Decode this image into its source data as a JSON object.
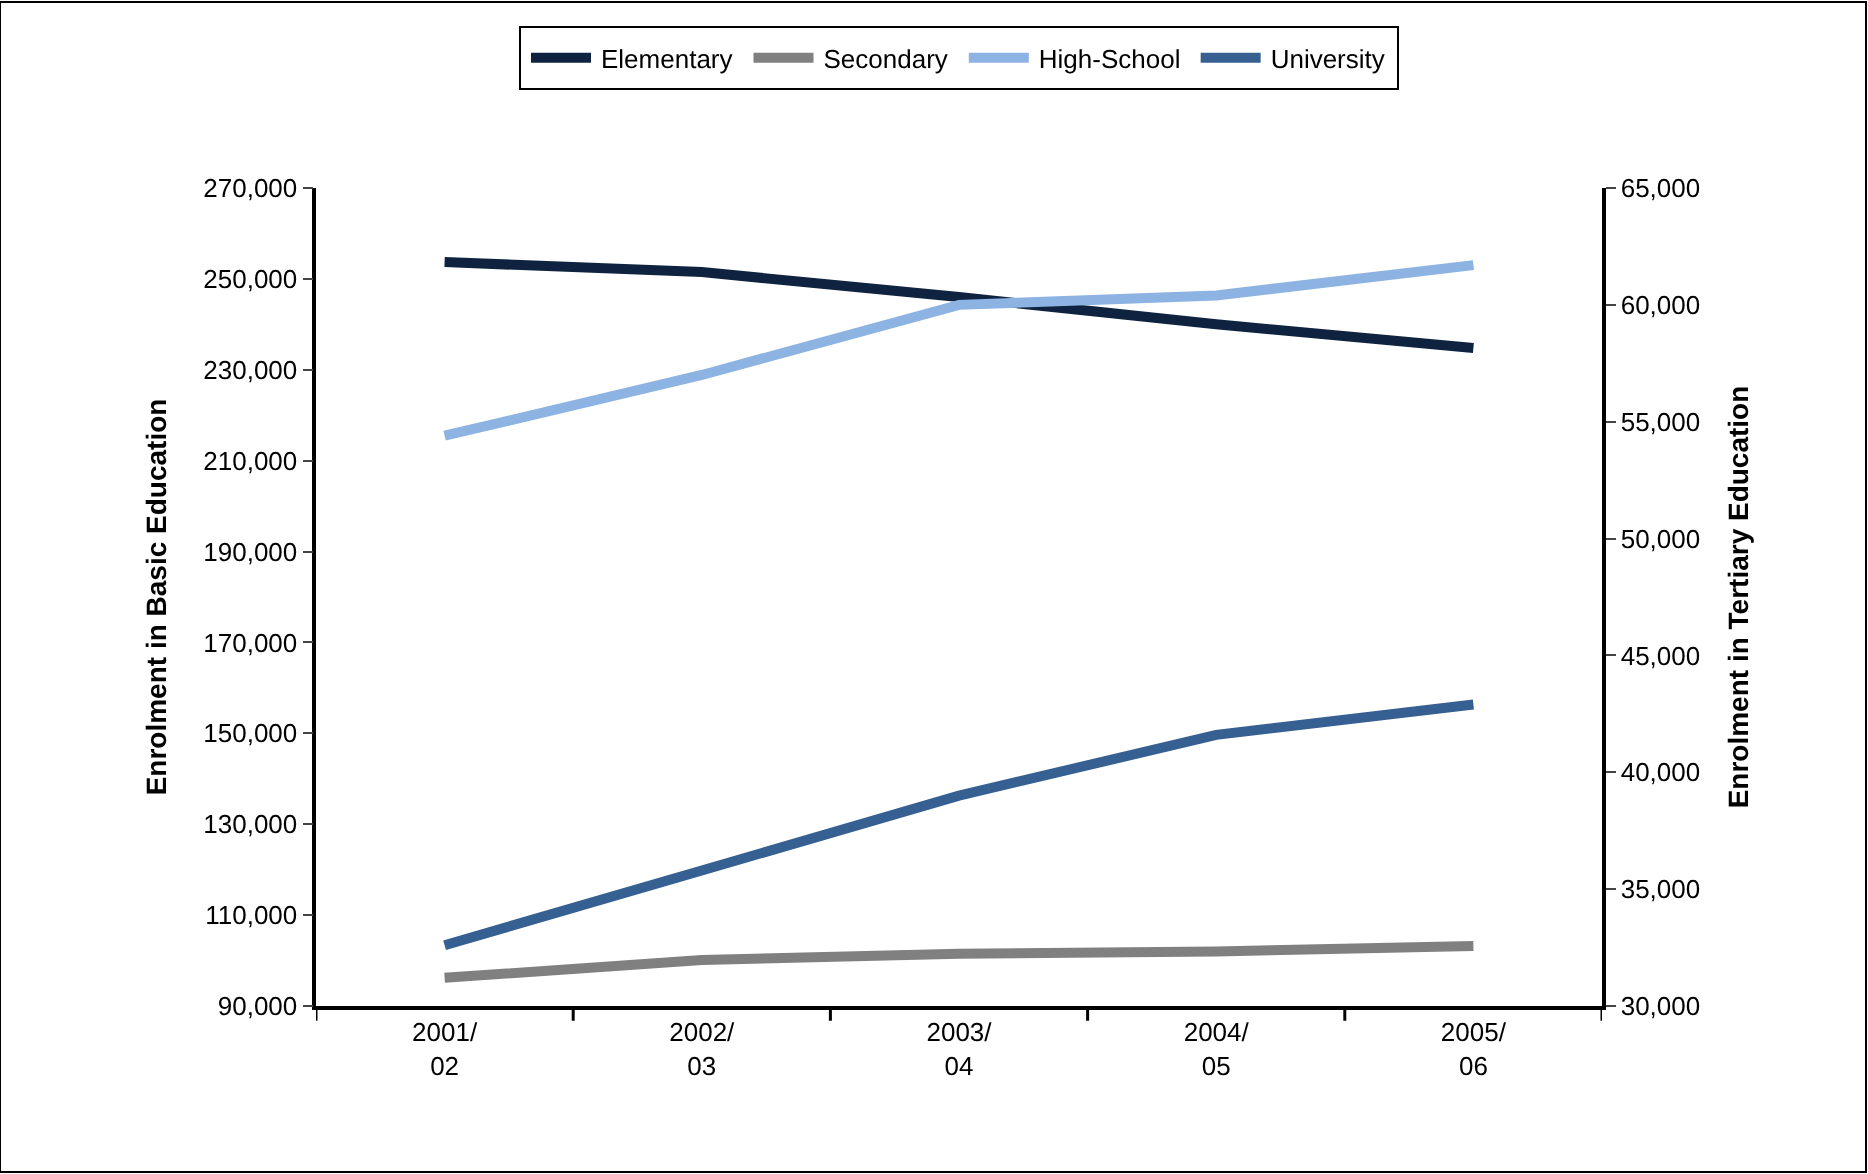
{
  "chart_data": {
    "type": "line",
    "categories": [
      "2001/\n02",
      "2002/\n03",
      "2003/\n04",
      "2004/\n05",
      "2005/\n06"
    ],
    "ylabel": "Enrolment in Basic Education",
    "y2label": "Enrolment in Tertiary Education",
    "ylim": [
      90000,
      270000
    ],
    "yticks": [
      {
        "value": 90000,
        "label": "90,000"
      },
      {
        "value": 110000,
        "label": "110,000"
      },
      {
        "value": 130000,
        "label": "130,000"
      },
      {
        "value": 150000,
        "label": "150,000"
      },
      {
        "value": 170000,
        "label": "170,000"
      },
      {
        "value": 190000,
        "label": "190,000"
      },
      {
        "value": 210000,
        "label": "210,000"
      },
      {
        "value": 230000,
        "label": "230,000"
      },
      {
        "value": 250000,
        "label": "250,000"
      },
      {
        "value": 270000,
        "label": "270,000"
      }
    ],
    "y2lim": [
      30000,
      65000
    ],
    "y2ticks": [
      {
        "value": 30000,
        "label": "30,000"
      },
      {
        "value": 35000,
        "label": "35,000"
      },
      {
        "value": 40000,
        "label": "40,000"
      },
      {
        "value": 45000,
        "label": "45,000"
      },
      {
        "value": 50000,
        "label": "50,000"
      },
      {
        "value": 55000,
        "label": "55,000"
      },
      {
        "value": 60000,
        "label": "60,000"
      },
      {
        "value": 65000,
        "label": "65,000"
      }
    ],
    "legend": "top",
    "marker": "none",
    "line_style": "solid",
    "series": [
      {
        "name": "Elementary",
        "color": "#0f2340",
        "values": [
          253700,
          251500,
          246000,
          240000,
          234800
        ]
      },
      {
        "name": "Secondary",
        "color": "#808080",
        "values": [
          96200,
          100100,
          101500,
          102000,
          103200
        ]
      },
      {
        "name": "High-School",
        "color": "#8db3e2",
        "axis": "y2",
        "values": [
          54400,
          57000,
          60000,
          60400,
          61700
        ]
      },
      {
        "name": "University",
        "color": "#366092",
        "axis": "y2",
        "values": [
          32600,
          35800,
          39000,
          41600,
          42900
        ]
      }
    ]
  }
}
